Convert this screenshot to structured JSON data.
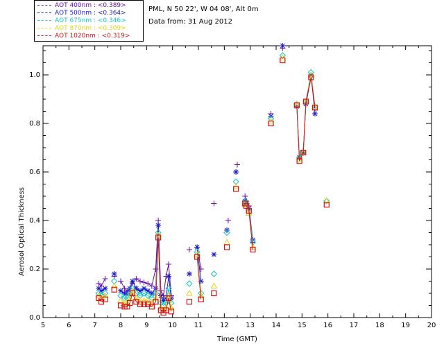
{
  "chart_data": {
    "type": "scatter",
    "title": "PML, N 50 22', W 04 08', Alt 0m",
    "subtitle": "Data from: 31 Aug 2012",
    "xlabel": "Time (GMT)",
    "ylabel": "Aerosol Optical Thickness",
    "xlim": [
      5,
      20
    ],
    "ylim": [
      0,
      1.12
    ],
    "xticks": [
      "5",
      "6",
      "7",
      "8",
      "9",
      "10",
      "11",
      "12",
      "13",
      "14",
      "15",
      "16",
      "17",
      "18",
      "19",
      "20"
    ],
    "yticks": [
      "0.0",
      "0.2",
      "0.4",
      "0.6",
      "0.8",
      "1.0"
    ],
    "legend_position": "top-left",
    "series": [
      {
        "name": "AOT  400nm : <0.389>",
        "color": "#6a0da8",
        "marker": "plus",
        "x": [
          7.15,
          7.25,
          7.4,
          7.75,
          8.0,
          8.15,
          8.25,
          8.35,
          8.45,
          8.6,
          8.75,
          8.9,
          9.05,
          9.2,
          9.35,
          9.45,
          9.55,
          9.65,
          9.75,
          9.85,
          9.95,
          10.65,
          10.95,
          11.1,
          11.6,
          12.1,
          12.15,
          12.45,
          12.5,
          12.8,
          12.85,
          12.95,
          13.1,
          13.8,
          14.25,
          14.8,
          14.9,
          15.05,
          15.15,
          15.35,
          15.5
        ],
        "y": [
          0.14,
          0.13,
          0.16,
          0.17,
          0.15,
          0.12,
          0.11,
          0.11,
          0.14,
          0.16,
          0.15,
          0.145,
          0.14,
          0.13,
          0.2,
          0.4,
          0.11,
          0.09,
          0.17,
          0.22,
          0.09,
          0.28,
          0.29,
          0.2,
          0.47,
          0.36,
          0.4,
          0.6,
          0.63,
          0.5,
          0.48,
          0.46,
          0.31,
          0.84,
          1.11,
          0.87,
          0.66,
          0.69,
          0.88,
          0.99,
          0.86
        ]
      },
      {
        "name": "AOT  500nm : <0.364>",
        "color": "#1d1dc8",
        "marker": "star",
        "x": [
          7.15,
          7.25,
          7.4,
          7.75,
          8.0,
          8.15,
          8.25,
          8.35,
          8.45,
          8.6,
          8.75,
          8.9,
          9.05,
          9.2,
          9.35,
          9.45,
          9.55,
          9.65,
          9.75,
          9.85,
          9.95,
          10.65,
          10.95,
          11.1,
          11.6,
          12.1,
          12.45,
          12.8,
          12.85,
          12.95,
          13.1,
          13.8,
          14.25,
          14.8,
          14.9,
          15.05,
          15.15,
          15.35,
          15.5
        ],
        "y": [
          0.12,
          0.11,
          0.12,
          0.18,
          0.11,
          0.1,
          0.1,
          0.12,
          0.15,
          0.12,
          0.11,
          0.12,
          0.11,
          0.1,
          0.12,
          0.38,
          0.09,
          0.07,
          0.08,
          0.17,
          0.08,
          0.18,
          0.29,
          0.15,
          0.26,
          0.36,
          0.6,
          0.48,
          0.47,
          0.45,
          0.32,
          0.83,
          1.12,
          0.87,
          0.66,
          0.68,
          0.88,
          1.0,
          0.84
        ]
      },
      {
        "name": "AOT  675nm : <0.346>",
        "color": "#15c8c8",
        "marker": "diamond",
        "x": [
          7.15,
          7.25,
          7.4,
          7.75,
          8.0,
          8.15,
          8.25,
          8.35,
          8.45,
          8.6,
          8.75,
          8.9,
          9.05,
          9.2,
          9.35,
          9.45,
          9.55,
          9.65,
          9.75,
          9.85,
          9.95,
          10.65,
          10.95,
          11.1,
          11.6,
          12.1,
          12.45,
          12.8,
          12.85,
          12.95,
          13.1,
          13.8,
          14.25,
          14.8,
          14.9,
          15.05,
          15.15,
          15.35,
          15.5,
          15.95
        ],
        "y": [
          0.1,
          0.09,
          0.1,
          0.15,
          0.09,
          0.08,
          0.08,
          0.1,
          0.12,
          0.1,
          0.09,
          0.1,
          0.09,
          0.08,
          0.1,
          0.35,
          0.06,
          0.05,
          0.06,
          0.12,
          0.06,
          0.14,
          0.27,
          0.1,
          0.18,
          0.35,
          0.56,
          0.48,
          0.47,
          0.44,
          0.31,
          0.82,
          1.08,
          0.88,
          0.66,
          0.68,
          0.89,
          1.01,
          0.87,
          0.48
        ]
      },
      {
        "name": "AOT  870nm : <0.309>",
        "color": "#e6d21a",
        "marker": "triangle",
        "x": [
          7.15,
          7.25,
          7.4,
          7.75,
          8.0,
          8.15,
          8.25,
          8.35,
          8.45,
          8.6,
          8.75,
          8.9,
          9.05,
          9.2,
          9.35,
          9.45,
          9.55,
          9.65,
          9.75,
          9.85,
          9.95,
          10.65,
          10.95,
          11.1,
          11.6,
          12.1,
          12.45,
          12.8,
          12.85,
          12.95,
          13.1,
          13.8,
          14.25,
          14.8,
          14.9,
          15.05,
          15.15,
          15.35,
          15.5,
          15.95
        ],
        "y": [
          0.09,
          0.08,
          0.09,
          0.13,
          0.07,
          0.06,
          0.06,
          0.08,
          0.11,
          0.08,
          0.07,
          0.07,
          0.07,
          0.06,
          0.08,
          0.34,
          0.04,
          0.03,
          0.04,
          0.09,
          0.04,
          0.1,
          0.26,
          0.09,
          0.13,
          0.31,
          0.54,
          0.47,
          0.46,
          0.43,
          0.29,
          0.81,
          1.07,
          0.88,
          0.65,
          0.68,
          0.89,
          1.0,
          0.87,
          0.48
        ]
      },
      {
        "name": "AOT  1020nm : <0.319>",
        "color": "#d21414",
        "marker": "square",
        "x": [
          7.15,
          7.25,
          7.4,
          7.75,
          8.0,
          8.15,
          8.25,
          8.35,
          8.45,
          8.6,
          8.75,
          8.9,
          9.05,
          9.2,
          9.35,
          9.45,
          9.55,
          9.65,
          9.75,
          9.85,
          9.95,
          10.65,
          10.95,
          11.1,
          11.6,
          12.1,
          12.45,
          12.8,
          12.85,
          12.95,
          13.1,
          13.8,
          14.25,
          14.8,
          14.9,
          15.05,
          15.15,
          15.35,
          15.5,
          15.95
        ],
        "y": [
          0.08,
          0.065,
          0.075,
          0.115,
          0.05,
          0.045,
          0.045,
          0.06,
          0.1,
          0.065,
          0.055,
          0.055,
          0.055,
          0.045,
          0.065,
          0.33,
          0.03,
          0.02,
          0.03,
          0.08,
          0.025,
          0.065,
          0.25,
          0.075,
          0.1,
          0.29,
          0.53,
          0.47,
          0.46,
          0.44,
          0.28,
          0.8,
          1.06,
          0.875,
          0.645,
          0.68,
          0.89,
          0.99,
          0.865,
          0.465
        ]
      }
    ],
    "connected_groups": [
      [
        7.15,
        7.25,
        7.4
      ],
      [
        8.0,
        8.15,
        8.25,
        8.35,
        8.45,
        8.6,
        8.75,
        8.9,
        9.05,
        9.2,
        9.35,
        9.45,
        9.55,
        9.65,
        9.75,
        9.85,
        9.95
      ],
      [
        10.95,
        11.1
      ],
      [
        12.8,
        12.85,
        12.95,
        13.1
      ],
      [
        14.8,
        14.9,
        15.05,
        15.15,
        15.35,
        15.5
      ]
    ]
  }
}
